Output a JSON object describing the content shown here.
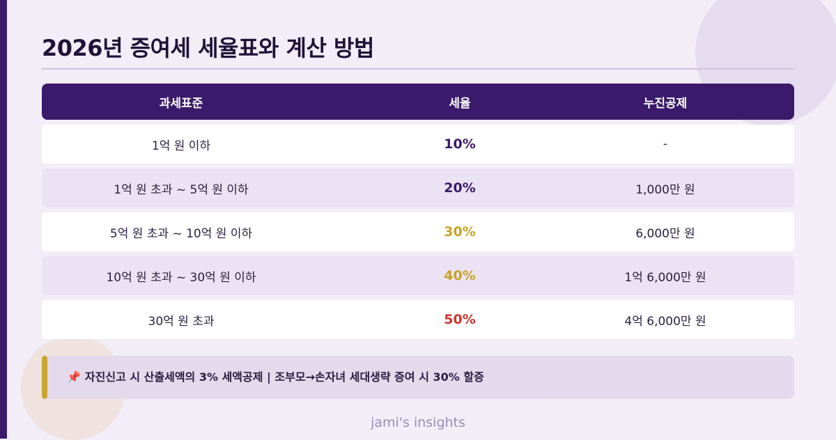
{
  "title": "2026년 증여세 세율표와 계산 방법",
  "table": {
    "headers": [
      "과세표준",
      "세율",
      "누진공제"
    ],
    "rows": [
      {
        "bracket": "1억 원 이하",
        "rate": "10%",
        "deduction": "-",
        "rate_color": "#3b1a6b"
      },
      {
        "bracket": "1억 원 초과 ~ 5억 원 이하",
        "rate": "20%",
        "deduction": "1,000만 원",
        "rate_color": "#3b1a6b"
      },
      {
        "bracket": "5억 원 초과 ~ 10억 원 이하",
        "rate": "30%",
        "deduction": "6,000만 원",
        "rate_color": "#c9a227"
      },
      {
        "bracket": "10억 원 초과 ~ 30억 원 이하",
        "rate": "40%",
        "deduction": "1억 6,000만 원",
        "rate_color": "#c9a227"
      },
      {
        "bracket": "30억 원 초과",
        "rate": "50%",
        "deduction": "4억 6,000만 원",
        "rate_color": "#d0342c"
      }
    ]
  },
  "note": {
    "icon": "pushpin-icon",
    "text": "자진신고 시 산출세액의 3% 세액공제 | 조부모→손자녀 세대생략 증여 시 30% 할증"
  },
  "footer": "jami's insights",
  "colors": {
    "primary": "#3b1a6b",
    "accent_gold": "#c9a227",
    "accent_red": "#d0342c",
    "background": "#f2edf7"
  }
}
